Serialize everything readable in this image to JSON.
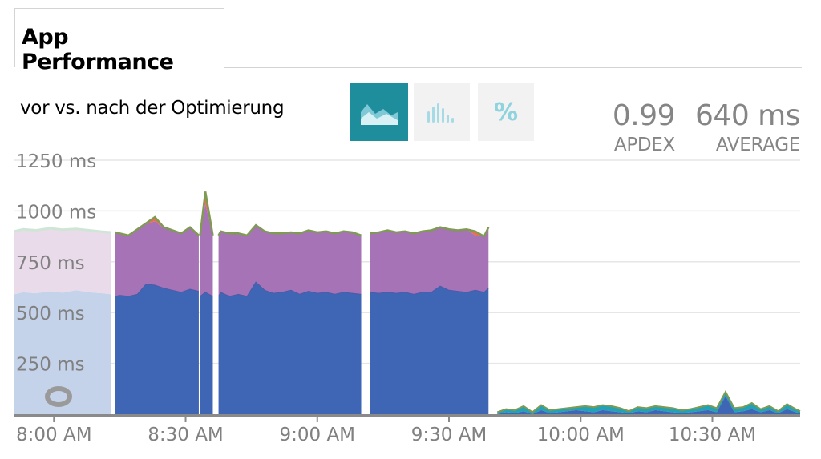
{
  "header": {
    "title": "App Performance",
    "subtitle": "vor vs. nach der Optimierung"
  },
  "toolbar": {
    "modes": [
      {
        "icon": "area-chart-icon",
        "active": true
      },
      {
        "icon": "histogram-icon",
        "active": false
      },
      {
        "icon": "percent-icon",
        "label": "%",
        "active": false
      }
    ]
  },
  "stats": {
    "apdex_value": "0.99",
    "apdex_label": "APDEX",
    "average_value": "640 ms",
    "average_label": "AVERAGE"
  },
  "colors": {
    "blue": "#3f65b5",
    "purple": "#a673b7",
    "red": "#e9704f",
    "green": "#7f9a52",
    "teal": "#22a2b5",
    "faded_blue": "#c4d3ea",
    "faded_purple": "#e9dbea",
    "grid": "#e6e6e6"
  },
  "chart_data": {
    "type": "area",
    "stacked": true,
    "x_unit": "time",
    "x_ticks": [
      "8:00 AM",
      "8:30 AM",
      "9:00 AM",
      "9:30 AM",
      "10:00 AM",
      "10:30 AM"
    ],
    "x_tick_minutes": [
      480,
      510,
      540,
      570,
      600,
      630
    ],
    "x_range_minutes": [
      471,
      650
    ],
    "y_ticks": [
      "1250 ms",
      "1000 ms",
      "750 ms",
      "500 ms",
      "250 ms"
    ],
    "y_tick_values": [
      1250,
      1000,
      750,
      500,
      250
    ],
    "ylim": [
      0,
      1250
    ],
    "grid": true,
    "faded_region_minutes": [
      471,
      493
    ],
    "faded_series": {
      "x": [
        471,
        473,
        476,
        479,
        482,
        485,
        488,
        491,
        493
      ],
      "base": [
        590,
        600,
        595,
        605,
        598,
        610,
        600,
        595,
        590
      ],
      "total": [
        900,
        910,
        905,
        915,
        908,
        912,
        905,
        898,
        895
      ]
    },
    "segments": [
      {
        "x": [
          494,
          495,
          497,
          499,
          501,
          503,
          505,
          507,
          509,
          511,
          513
        ],
        "base": [
          580,
          585,
          580,
          590,
          640,
          635,
          620,
          610,
          600,
          615,
          605
        ],
        "total": [
          895,
          890,
          880,
          910,
          935,
          950,
          915,
          905,
          890,
          915,
          880
        ],
        "red": [
          0,
          0,
          0,
          0,
          5,
          20,
          5,
          0,
          0,
          5,
          0
        ]
      },
      {
        "x": [
          513.3,
          514.5,
          516.2
        ],
        "base": [
          580,
          600,
          580
        ],
        "total": [
          880,
          1035,
          880
        ],
        "red": [
          0,
          60,
          0
        ]
      },
      {
        "x": [
          517.5,
          518,
          520,
          522,
          524,
          526,
          528,
          530,
          532,
          534,
          536,
          538,
          540,
          542,
          544,
          546,
          548,
          550
        ],
        "base": [
          580,
          600,
          580,
          590,
          580,
          650,
          610,
          595,
          600,
          610,
          590,
          605,
          595,
          600,
          590,
          600,
          595,
          590
        ],
        "total": [
          880,
          900,
          890,
          890,
          880,
          930,
          900,
          890,
          890,
          895,
          890,
          905,
          895,
          900,
          890,
          900,
          895,
          880
        ],
        "red": [
          0,
          0,
          0,
          0,
          0,
          0,
          0,
          0,
          0,
          0,
          0,
          0,
          0,
          0,
          0,
          0,
          0,
          0
        ]
      },
      {
        "x": [
          552,
          554,
          556,
          558,
          560,
          562,
          564,
          566,
          568,
          570,
          572,
          574,
          576,
          578,
          579
        ],
        "base": [
          600,
          595,
          600,
          595,
          600,
          590,
          600,
          600,
          630,
          610,
          605,
          600,
          610,
          600,
          620
        ],
        "total": [
          890,
          895,
          905,
          895,
          900,
          890,
          900,
          905,
          920,
          910,
          905,
          910,
          880,
          875,
          920
        ],
        "red": [
          0,
          0,
          0,
          0,
          0,
          0,
          0,
          0,
          0,
          0,
          0,
          0,
          20,
          0,
          0
        ]
      }
    ],
    "low_series": {
      "x": [
        581,
        583,
        585,
        587,
        589,
        591,
        593,
        595,
        597,
        599,
        601,
        603,
        605,
        607,
        609,
        611,
        613,
        615,
        617,
        619,
        621,
        623,
        625,
        627,
        629,
        631,
        633,
        635,
        637,
        639,
        641,
        643,
        645,
        647,
        649,
        650
      ],
      "base": [
        0,
        10,
        5,
        15,
        0,
        20,
        5,
        10,
        15,
        20,
        15,
        10,
        20,
        15,
        10,
        5,
        15,
        10,
        20,
        15,
        10,
        5,
        10,
        15,
        20,
        10,
        90,
        10,
        15,
        25,
        10,
        20,
        5,
        25,
        10,
        5
      ],
      "total": [
        10,
        25,
        20,
        40,
        10,
        45,
        20,
        25,
        30,
        35,
        40,
        35,
        45,
        40,
        30,
        15,
        35,
        30,
        40,
        35,
        30,
        20,
        25,
        35,
        45,
        30,
        110,
        30,
        35,
        55,
        25,
        40,
        15,
        50,
        25,
        15
      ]
    }
  }
}
